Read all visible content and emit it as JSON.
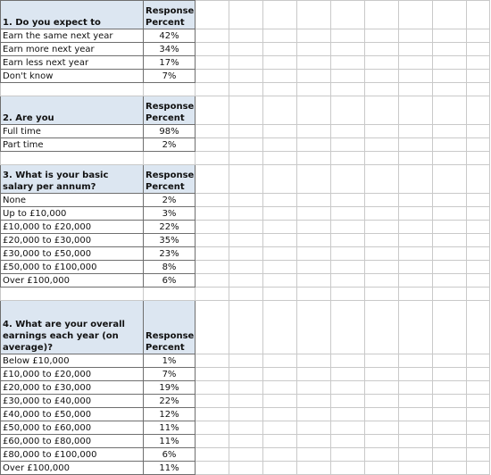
{
  "response_header": "Response Percent",
  "sections": [
    {
      "question": "1. Do you expect to",
      "rows": [
        {
          "label": "Earn the same next year",
          "value": "42%"
        },
        {
          "label": "Earn more next year",
          "value": "34%"
        },
        {
          "label": "Earn less next year",
          "value": "17%"
        },
        {
          "label": "Don't know",
          "value": "7%"
        }
      ]
    },
    {
      "question": "2. Are you",
      "rows": [
        {
          "label": "Full time",
          "value": "98%"
        },
        {
          "label": "Part time",
          "value": "2%"
        }
      ]
    },
    {
      "question": "3. What is your basic salary per annum?",
      "rows": [
        {
          "label": "None",
          "value": "2%"
        },
        {
          "label": "Up to £10,000",
          "value": "3%"
        },
        {
          "label": "£10,000 to £20,000",
          "value": "22%"
        },
        {
          "label": "£20,000 to £30,000",
          "value": "35%"
        },
        {
          "label": "£30,000 to £50,000",
          "value": "23%"
        },
        {
          "label": "£50,000 to £100,000",
          "value": "8%"
        },
        {
          "label": "Over £100,000",
          "value": "6%"
        }
      ]
    },
    {
      "question": "4. What are your overall earnings each year (on average)?",
      "rows": [
        {
          "label": "Below £10,000",
          "value": "1%"
        },
        {
          "label": "£10,000 to £20,000",
          "value": "7%"
        },
        {
          "label": "£20,000 to £30,000",
          "value": "19%"
        },
        {
          "label": "£30,000 to £40,000",
          "value": "22%"
        },
        {
          "label": "£40,000 to £50,000",
          "value": "12%"
        },
        {
          "label": "£50,000 to £60,000",
          "value": "11%"
        },
        {
          "label": "£60,000 to £80,000",
          "value": "11%"
        },
        {
          "label": "£80,000 to £100,000",
          "value": "6%"
        },
        {
          "label": "Over £100,000",
          "value": "11%"
        }
      ]
    }
  ]
}
